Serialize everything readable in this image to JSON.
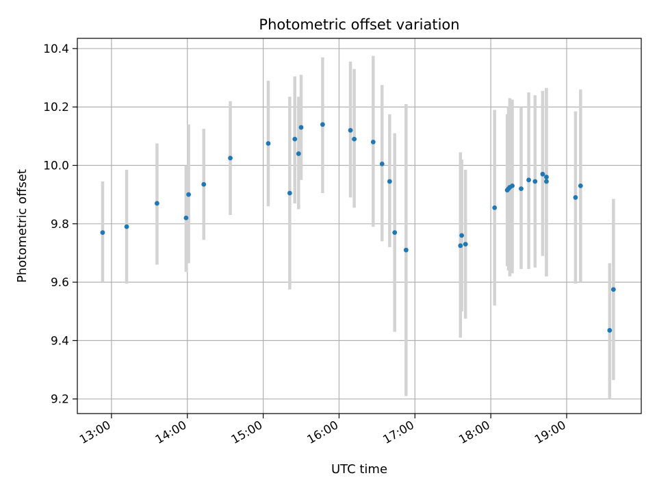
{
  "chart_data": {
    "type": "scatter",
    "title": "Photometric offset variation",
    "xlabel": "UTC time",
    "ylabel": "Photometric offset",
    "x_ticks": [
      "13:00",
      "14:00",
      "15:00",
      "16:00",
      "17:00",
      "18:00",
      "19:00"
    ],
    "y_ticks": [
      "9.2",
      "9.4",
      "9.6",
      "9.8",
      "10.0",
      "10.2",
      "10.4"
    ],
    "xlim": [
      "12:33",
      "19:59"
    ],
    "ylim": [
      9.15,
      10.435
    ],
    "grid": true,
    "point_color": "#1f77b4",
    "errorbar_color": "#d3d3d3",
    "points": [
      {
        "t": "12:53",
        "y": 9.77,
        "lo": 9.6,
        "hi": 9.945
      },
      {
        "t": "13:12",
        "y": 9.79,
        "lo": 9.595,
        "hi": 9.985
      },
      {
        "t": "13:36",
        "y": 9.87,
        "lo": 9.66,
        "hi": 10.075
      },
      {
        "t": "13:59",
        "y": 9.82,
        "lo": 9.635,
        "hi": 10.0
      },
      {
        "t": "14:01",
        "y": 9.9,
        "lo": 9.665,
        "hi": 10.14
      },
      {
        "t": "14:13",
        "y": 9.935,
        "lo": 9.745,
        "hi": 10.125
      },
      {
        "t": "14:34",
        "y": 10.025,
        "lo": 9.83,
        "hi": 10.22
      },
      {
        "t": "15:04",
        "y": 10.075,
        "lo": 9.86,
        "hi": 10.29
      },
      {
        "t": "15:21",
        "y": 9.905,
        "lo": 9.575,
        "hi": 10.235
      },
      {
        "t": "15:25",
        "y": 10.09,
        "lo": 9.87,
        "hi": 10.305
      },
      {
        "t": "15:28",
        "y": 10.04,
        "lo": 9.85,
        "hi": 10.235
      },
      {
        "t": "15:30",
        "y": 10.13,
        "lo": 9.95,
        "hi": 10.31
      },
      {
        "t": "15:47",
        "y": 10.14,
        "lo": 9.905,
        "hi": 10.37
      },
      {
        "t": "16:09",
        "y": 10.12,
        "lo": 9.89,
        "hi": 10.355
      },
      {
        "t": "16:12",
        "y": 10.09,
        "lo": 9.855,
        "hi": 10.33
      },
      {
        "t": "16:27",
        "y": 10.08,
        "lo": 9.79,
        "hi": 10.375
      },
      {
        "t": "16:34",
        "y": 10.005,
        "lo": 9.74,
        "hi": 10.275
      },
      {
        "t": "16:40",
        "y": 9.945,
        "lo": 9.72,
        "hi": 10.175
      },
      {
        "t": "16:44",
        "y": 9.77,
        "lo": 9.43,
        "hi": 10.11
      },
      {
        "t": "16:53",
        "y": 9.71,
        "lo": 9.21,
        "hi": 10.21
      },
      {
        "t": "17:36",
        "y": 9.725,
        "lo": 9.41,
        "hi": 10.045
      },
      {
        "t": "17:37",
        "y": 9.76,
        "lo": 9.5,
        "hi": 10.02
      },
      {
        "t": "17:40",
        "y": 9.73,
        "lo": 9.475,
        "hi": 9.985
      },
      {
        "t": "18:03",
        "y": 9.855,
        "lo": 9.52,
        "hi": 10.19
      },
      {
        "t": "18:13",
        "y": 9.915,
        "lo": 9.655,
        "hi": 10.175
      },
      {
        "t": "18:14",
        "y": 9.92,
        "lo": 9.64,
        "hi": 10.2
      },
      {
        "t": "18:15",
        "y": 9.925,
        "lo": 9.62,
        "hi": 10.23
      },
      {
        "t": "18:17",
        "y": 9.93,
        "lo": 9.63,
        "hi": 10.225
      },
      {
        "t": "18:24",
        "y": 9.92,
        "lo": 9.645,
        "hi": 10.2
      },
      {
        "t": "18:30",
        "y": 9.95,
        "lo": 9.645,
        "hi": 10.25
      },
      {
        "t": "18:35",
        "y": 9.945,
        "lo": 9.65,
        "hi": 10.24
      },
      {
        "t": "18:41",
        "y": 9.97,
        "lo": 9.69,
        "hi": 10.255
      },
      {
        "t": "18:44",
        "y": 9.96,
        "lo": 9.62,
        "hi": 10.265
      },
      {
        "t": "18:44",
        "y": 9.945,
        "lo": 9.62,
        "hi": 10.265
      },
      {
        "t": "19:07",
        "y": 9.89,
        "lo": 9.595,
        "hi": 10.185
      },
      {
        "t": "19:11",
        "y": 9.93,
        "lo": 9.6,
        "hi": 10.26
      },
      {
        "t": "19:34",
        "y": 9.435,
        "lo": 9.2,
        "hi": 9.665
      },
      {
        "t": "19:37",
        "y": 9.575,
        "lo": 9.265,
        "hi": 9.885
      }
    ]
  }
}
